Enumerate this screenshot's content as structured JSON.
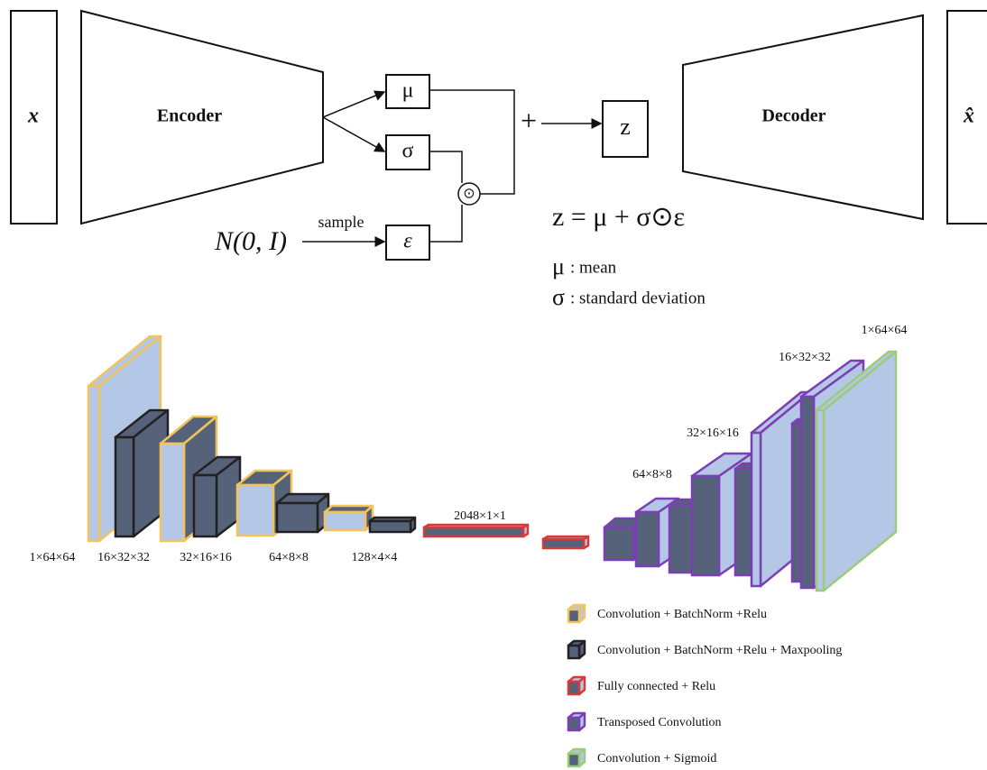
{
  "vae": {
    "input": "x",
    "encoder": "Encoder",
    "mu": "μ",
    "sigma": "σ",
    "epsilon": "ε",
    "prior": "N(0, I)",
    "sample_label": "sample",
    "plus": "+",
    "hadamard": "⊙",
    "latent": "z",
    "decoder": "Decoder",
    "output": "x̂",
    "equation": "z = μ + σ⊙ε",
    "notation": [
      {
        "symbol": "μ",
        "text": ": mean"
      },
      {
        "symbol": "σ",
        "text": ": standard deviation"
      }
    ]
  },
  "network": {
    "encoder_labels": [
      "1×64×64",
      "16×32×32",
      "32×16×16",
      "64×8×8",
      "128×4×4"
    ],
    "fc_label": "2048×1×1",
    "decoder_labels": [
      "64×8×8",
      "32×16×16",
      "16×32×32",
      "1×64×64"
    ]
  },
  "legend": [
    {
      "text": "Convolution + BatchNorm +Relu",
      "fill": "#b4c7e7",
      "border": "#f2c45a"
    },
    {
      "text": "Convolution + BatchNorm +Relu + Maxpooling",
      "fill": "#56617a",
      "border": "#222222"
    },
    {
      "text": "Fully connected + Relu",
      "fill": "#b4c7e7",
      "border": "#d83a3a"
    },
    {
      "text": "Transposed Convolution",
      "fill": "#b4c7e7",
      "border": "#7b3fb5"
    },
    {
      "text": "Convolution + Sigmoid",
      "fill": "#b4c7e7",
      "border": "#9ccc7a"
    }
  ]
}
